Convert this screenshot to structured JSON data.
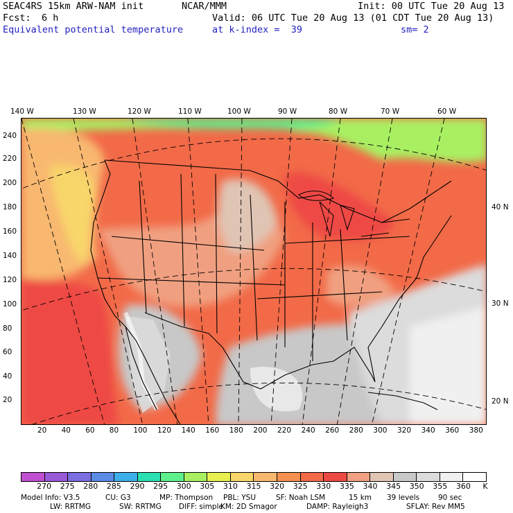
{
  "header": {
    "model_title": "SEAC4RS 15km ARW-NAM init",
    "org": "NCAR/MMM",
    "init_time": "Init: 00 UTC Tue 20 Aug 13",
    "fcst_label": "Fcst:",
    "fcst_value": "6 h",
    "valid_time": "Valid: 06 UTC Tue 20 Aug 13 (01 CDT Tue 20 Aug 13)",
    "field_name": "Equivalent potential temperature",
    "level": "at k-index =  39",
    "smoothing": "sm= 2"
  },
  "map": {
    "lon_labels": [
      "140 W",
      "130 W",
      "120 W",
      "110 W",
      "100 W",
      "90 W",
      "80 W",
      "70 W",
      "60 W"
    ],
    "lat_labels": [
      "40 N",
      "30 N",
      "20 N"
    ],
    "y_ticks": [
      "240",
      "220",
      "200",
      "180",
      "160",
      "140",
      "120",
      "100",
      "80",
      "60",
      "40",
      "20"
    ],
    "x_ticks": [
      "20",
      "40",
      "60",
      "80",
      "100",
      "120",
      "140",
      "160",
      "180",
      "200",
      "220",
      "240",
      "260",
      "280",
      "300",
      "320",
      "340",
      "360",
      "380"
    ]
  },
  "colorbar": {
    "labels": [
      "270",
      "275",
      "280",
      "285",
      "290",
      "295",
      "300",
      "305",
      "310",
      "315",
      "320",
      "325",
      "330",
      "335",
      "340",
      "345",
      "350",
      "355",
      "360",
      "K"
    ],
    "colors": [
      "#c050d0",
      "#9a5ad8",
      "#7a6ee0",
      "#5a8ce6",
      "#3cb0ea",
      "#2ae0b0",
      "#5ef08a",
      "#a8f062",
      "#e8f050",
      "#f8d66a",
      "#f8b870",
      "#f49050",
      "#f26a48",
      "#ee4a44",
      "#f0a080",
      "#e0c4b4",
      "#c8c8c8",
      "#dcdcdc",
      "#f0f0f0",
      "#ffffff"
    ]
  },
  "footer": {
    "line1": [
      "Model Info: V3.5",
      "CU: G3",
      "MP: Thompson",
      "PBL: YSU",
      "SF: Noah LSM",
      "15 km",
      "39 levels",
      "90 sec"
    ],
    "line2": [
      "LW: RRTMG",
      "SW: RRTMG",
      "DIFF: simple",
      "KM: 2D Smagor",
      "DAMP: Rayleigh3",
      "SFLAY: Rev MM5"
    ]
  }
}
